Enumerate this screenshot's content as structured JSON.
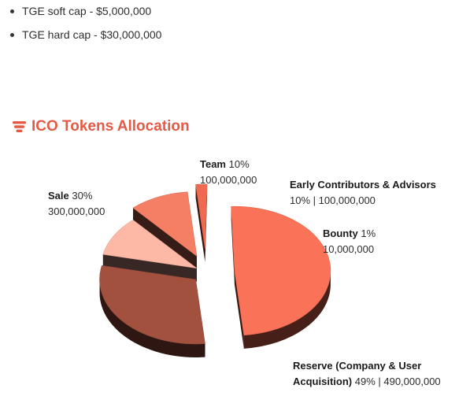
{
  "bullets": [
    {
      "text": "TGE soft cap - $5,000,000"
    },
    {
      "text": "TGE hard cap - $30,000,000"
    }
  ],
  "section": {
    "title": "ICO Tokens Allocation",
    "icon": "bars-icon",
    "accent": "#e35a47"
  },
  "chart_data": {
    "type": "pie",
    "title": "ICO Tokens Allocation",
    "slices": [
      {
        "name": "Reserve (Company & User Acquisition)",
        "percent": 49,
        "value": "490,000,000",
        "color": "#fa7257"
      },
      {
        "name": "Sale",
        "percent": 30,
        "value": "300,000,000",
        "color": "#a3513f"
      },
      {
        "name": "Team",
        "percent": 10,
        "value": "100,000,000",
        "color": "#fdb8a6"
      },
      {
        "name": "Early Contributors & Advisors",
        "percent": 10,
        "value": "100,000,000",
        "color": "#f57f64"
      },
      {
        "name": "Bounty",
        "percent": 1,
        "value": "10,000,000",
        "color": "#f06a52"
      }
    ],
    "labels": {
      "team": {
        "name": "Team",
        "pct": "10%",
        "value": "100,000,000"
      },
      "early": {
        "name": "Early Contributors & Advisors",
        "value_line": "10% | 100,000,000"
      },
      "bounty": {
        "name": "Bounty",
        "pct": "1%",
        "value": "10,000,000"
      },
      "sale": {
        "name": "Sale",
        "pct": "30%",
        "value": "300,000,000"
      },
      "reserve": {
        "name_line1": "Reserve (Company & User",
        "name_line2": "Acquisition)",
        "value_line": "49% | 490,000,000"
      }
    }
  }
}
